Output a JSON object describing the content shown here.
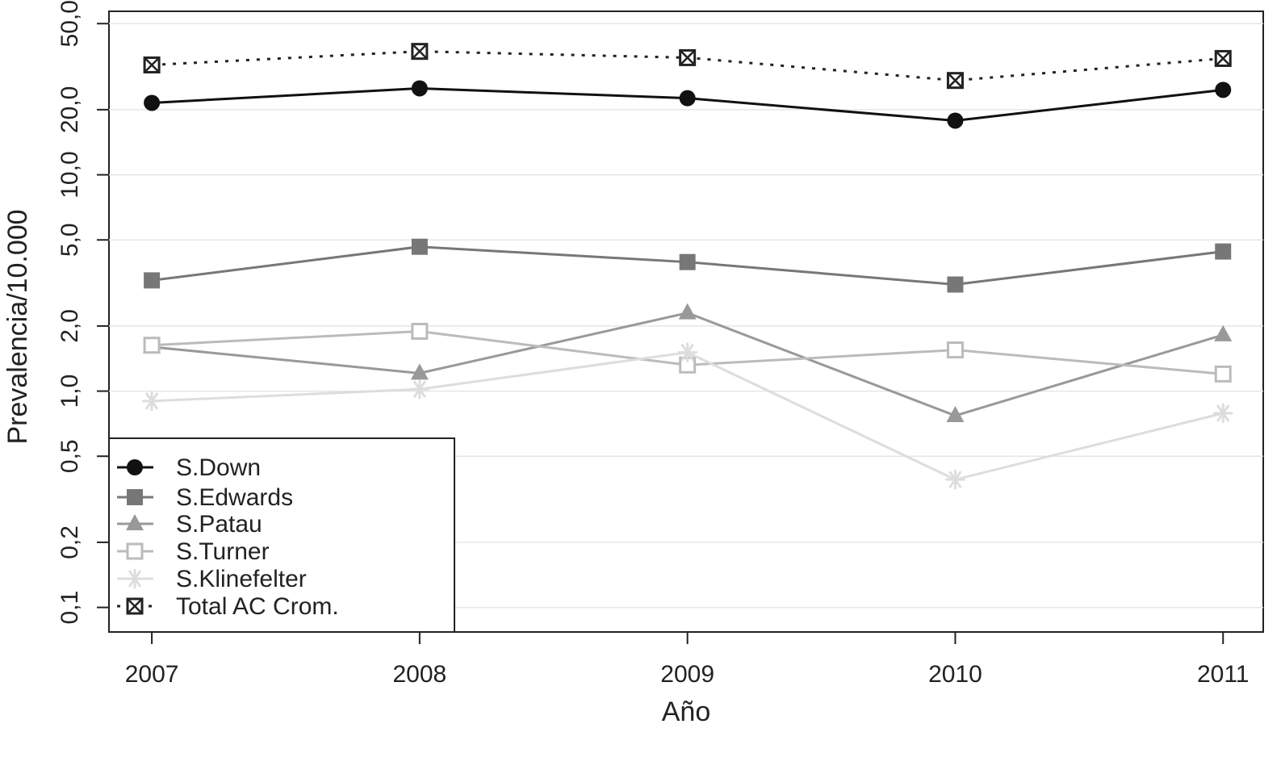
{
  "chart_data": {
    "type": "line",
    "x_label": "Año",
    "y_label": "Prevalencia/10.000",
    "x": [
      2007,
      2008,
      2009,
      2010,
      2011
    ],
    "xlim": [
      2006.84,
      2011.15
    ],
    "xticks": [
      2007,
      2008,
      2009,
      2010,
      2011
    ],
    "ylim": [
      0.077,
      57
    ],
    "log_y": true,
    "grid": true,
    "legend": "bottom-left",
    "yticks": [
      {
        "value": 0.1,
        "label": "0,1"
      },
      {
        "value": 0.2,
        "label": "0,2"
      },
      {
        "value": 0.5,
        "label": "0,5"
      },
      {
        "value": 1,
        "label": "1,0"
      },
      {
        "value": 2,
        "label": "2,0"
      },
      {
        "value": 5,
        "label": "5,0"
      },
      {
        "value": 10,
        "label": "10,0"
      },
      {
        "value": 20,
        "label": "20,0"
      },
      {
        "value": 50,
        "label": "50,0"
      }
    ],
    "series": [
      {
        "name": "S.Down",
        "color": "#111111",
        "marker": "circle",
        "dash": false,
        "values": [
          21.5,
          25.1,
          22.6,
          17.8,
          24.7
        ]
      },
      {
        "name": "S.Edwards",
        "color": "#777777",
        "marker": "square",
        "dash": false,
        "values": [
          3.25,
          4.65,
          3.95,
          3.11,
          4.42
        ]
      },
      {
        "name": "S.Patau",
        "color": "#999999",
        "marker": "triangle",
        "dash": false,
        "values": [
          1.6,
          1.21,
          2.3,
          0.77,
          1.82
        ]
      },
      {
        "name": "S.Turner",
        "color": "#bbbbbb",
        "marker": "open-square",
        "dash": false,
        "values": [
          1.63,
          1.89,
          1.32,
          1.55,
          1.2
        ]
      },
      {
        "name": "S.Klinefelter",
        "color": "#dddddd",
        "marker": "asterisk",
        "dash": false,
        "values": [
          0.9,
          1.02,
          1.51,
          0.39,
          0.79
        ]
      },
      {
        "name": "Total AC Crom.",
        "color": "#222222",
        "marker": "boxed-x",
        "dash": true,
        "values": [
          32.2,
          37.2,
          34.8,
          27.3,
          34.5
        ]
      }
    ]
  }
}
